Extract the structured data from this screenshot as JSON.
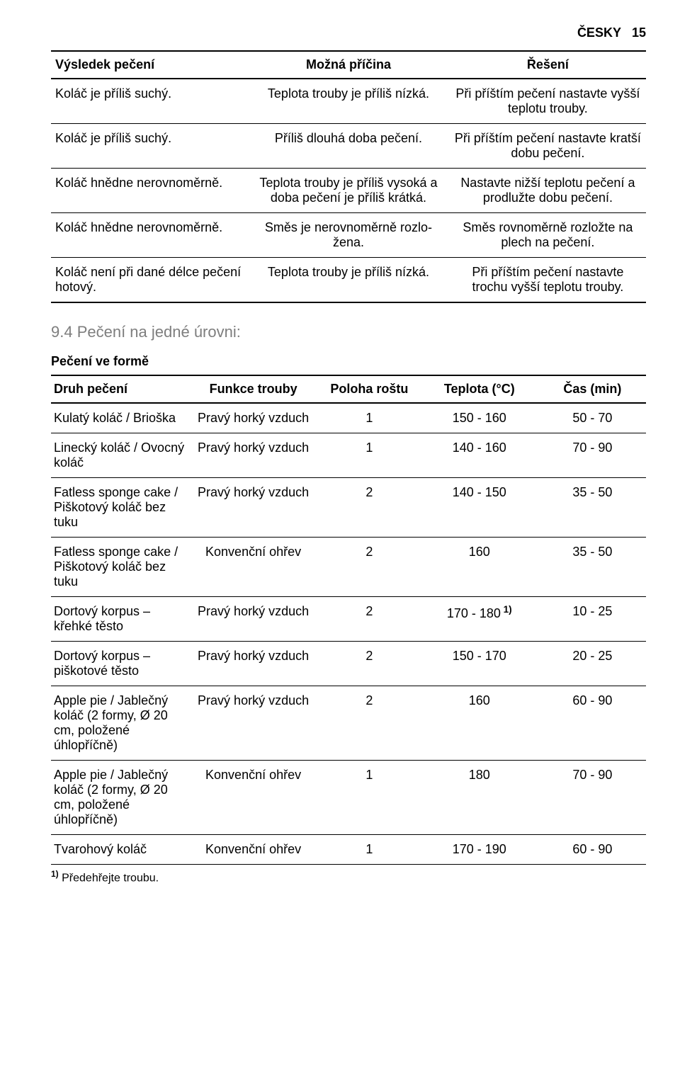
{
  "header": {
    "lang": "ČESKY",
    "page": "15"
  },
  "trouble": {
    "headers": [
      "Výsledek pečení",
      "Možná příčina",
      "Řešení"
    ],
    "rows": [
      [
        "Koláč je příliš suchý.",
        "Teplota trouby je příliš nízká.",
        "Při příštím pečení nastavte vyšší teplotu trouby."
      ],
      [
        "Koláč je příliš suchý.",
        "Příliš dlouhá doba pečení.",
        "Při příštím pečení nastavte kratší dobu pečení."
      ],
      [
        "Koláč hnědne nerovnoměrně.",
        "Teplota trouby je příliš vysoká a doba pečení je příliš krátká.",
        "Nastavte nižší teplotu pečení a prodlužte dobu pečení."
      ],
      [
        "Koláč hnědne nerovnoměrně.",
        "Směs je nerovnoměrně rozlo­žena.",
        "Směs rovnoměrně rozložte na plech na pečení."
      ],
      [
        "Koláč není při dané délce pe­čení hotový.",
        "Teplota trouby je příliš nízká.",
        "Při příštím pečení nastavte trochu vyšší teplotu trouby."
      ]
    ]
  },
  "section94": "9.4 Pečení na jedné úrovni:",
  "subhead": "Pečení ve formě",
  "baking": {
    "headers": [
      "Druh pečení",
      "Funkce trouby",
      "Poloha roštu",
      "Teplota (°C)",
      "Čas (min)"
    ],
    "rows": [
      {
        "c": [
          "Kulatý koláč / Brioška",
          "Pravý horký vzduch",
          "1",
          "150 - 160",
          "50 - 70"
        ]
      },
      {
        "c": [
          "Linecký koláč / Ovocný koláč",
          "Pravý horký vzduch",
          "1",
          "140 - 160",
          "70 - 90"
        ]
      },
      {
        "c": [
          "Fatless sponge cake / Piškotový koláč bez tuku",
          "Pravý horký vzduch",
          "2",
          "140 - 150",
          "35 - 50"
        ]
      },
      {
        "c": [
          "Fatless sponge cake / Piškotový koláč bez tuku",
          "Konvenční ohřev",
          "2",
          "160",
          "35 - 50"
        ]
      },
      {
        "c": [
          "Dortový korpus – křehké těsto",
          "Pravý horký vzduch",
          "2",
          "170 - 180",
          "10 - 25"
        ],
        "sup4": "1)"
      },
      {
        "c": [
          "Dortový korpus – piškotové těsto",
          "Pravý horký vzduch",
          "2",
          "150 - 170",
          "20 - 25"
        ]
      },
      {
        "c": [
          "Apple pie / Ja­blečný koláč (2 formy, Ø 20 cm, položené úhlopříčně)",
          "Pravý horký vzduch",
          "2",
          "160",
          "60 - 90"
        ]
      },
      {
        "c": [
          "Apple pie / Ja­blečný koláč (2 formy, Ø 20 cm, položené úhlopříčně)",
          "Konvenční ohřev",
          "1",
          "180",
          "70 - 90"
        ]
      },
      {
        "c": [
          "Tvarohový koláč",
          "Konvenční ohřev",
          "1",
          "170 - 190",
          "60 - 90"
        ]
      }
    ]
  },
  "footnote": {
    "mark": "1)",
    "text": " Předehřejte troubu."
  }
}
